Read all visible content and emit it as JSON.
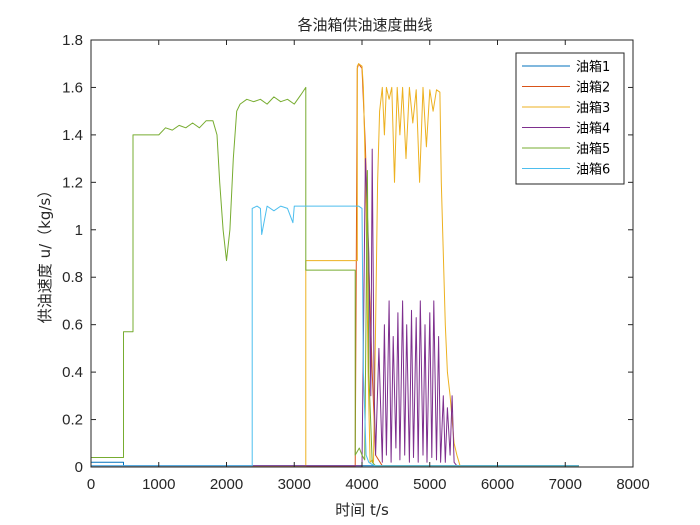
{
  "chart_data": {
    "type": "line",
    "title": "各油箱供油速度曲线",
    "xlabel": "时间 t/s",
    "ylabel": "供油速度 u/（kg/s）",
    "xlim": [
      0,
      8000
    ],
    "ylim": [
      0,
      1.8
    ],
    "x_ticks": [
      0,
      1000,
      2000,
      3000,
      4000,
      5000,
      6000,
      7000,
      8000
    ],
    "y_ticks": [
      0,
      0.2,
      0.4,
      0.6,
      0.8,
      1,
      1.2,
      1.4,
      1.6,
      1.8
    ],
    "x_tick_labels": [
      "0",
      "1000",
      "2000",
      "3000",
      "4000",
      "5000",
      "6000",
      "7000",
      "8000"
    ],
    "y_tick_labels": [
      "0",
      "0.2",
      "0.4",
      "0.6",
      "0.8",
      "1",
      "1.2",
      "1.4",
      "1.6",
      "1.8"
    ],
    "grid": false,
    "legend_position": "top-right",
    "series": [
      {
        "name": "油箱1",
        "color": "#0072BD",
        "x": [
          0,
          480,
          480,
          4000,
          7200
        ],
        "y": [
          0.02,
          0.02,
          0.005,
          0.005,
          0.005
        ]
      },
      {
        "name": "油箱2",
        "color": "#D95319",
        "x": [
          0,
          3900,
          3930,
          3950,
          4000,
          4050,
          4100,
          4150,
          4200,
          4300,
          7200
        ],
        "y": [
          0.003,
          0.003,
          1.68,
          1.7,
          1.68,
          1.35,
          0.85,
          0.4,
          0.05,
          0.005,
          0.005
        ]
      },
      {
        "name": "油箱3",
        "color": "#EDB120",
        "x": [
          0,
          3170,
          3170,
          3930,
          3930,
          3950,
          4000,
          4020,
          4060,
          4090,
          4120,
          4150,
          4170,
          4200,
          4230,
          4260,
          4300,
          4330,
          4360,
          4400,
          4440,
          4480,
          4520,
          4560,
          4600,
          4650,
          4700,
          4750,
          4800,
          4850,
          4900,
          4950,
          5000,
          5050,
          5100,
          5150,
          5170,
          5200,
          5230,
          5260,
          5300,
          5330,
          5360,
          5400,
          5450,
          7200
        ],
        "y": [
          0.003,
          0.003,
          0.87,
          0.87,
          1.69,
          1.7,
          1.69,
          1.6,
          1.1,
          0.4,
          0.02,
          0.03,
          0.02,
          0.6,
          1.2,
          1.5,
          1.6,
          1.4,
          1.6,
          1.55,
          1.6,
          1.2,
          1.6,
          1.4,
          1.6,
          1.3,
          1.6,
          1.45,
          1.59,
          1.2,
          1.6,
          1.35,
          1.59,
          1.5,
          1.59,
          1.58,
          1.2,
          0.9,
          0.6,
          0.4,
          0.3,
          0.2,
          0.1,
          0.05,
          0.003,
          0.003
        ]
      },
      {
        "name": "油箱4",
        "color": "#7E2F8E",
        "x": [
          0,
          4000,
          4050,
          4100,
          4130,
          4150,
          4180,
          4200,
          4250,
          4300,
          4330,
          4360,
          4400,
          4430,
          4460,
          4500,
          4530,
          4560,
          4600,
          4630,
          4660,
          4700,
          4730,
          4760,
          4800,
          4830,
          4860,
          4900,
          4930,
          4960,
          5000,
          5030,
          5060,
          5100,
          5130,
          5160,
          5200,
          5230,
          5260,
          5300,
          5330,
          5360,
          5400,
          7200
        ],
        "y": [
          0.005,
          0.005,
          1.3,
          0.9,
          0.3,
          1.34,
          0.3,
          0.05,
          0.5,
          0.02,
          0.6,
          0.05,
          0.7,
          0.02,
          0.55,
          0.08,
          0.65,
          0.03,
          0.7,
          0.05,
          0.6,
          0.02,
          0.66,
          0.04,
          0.63,
          0.02,
          0.7,
          0.05,
          0.6,
          0.02,
          0.65,
          0.04,
          0.7,
          0.03,
          0.55,
          0.02,
          0.3,
          0.02,
          0.25,
          0.05,
          0.3,
          0.02,
          0.005,
          0.005
        ]
      },
      {
        "name": "油箱5",
        "color": "#77AC30",
        "x": [
          0,
          480,
          480,
          620,
          620,
          1000,
          1100,
          1200,
          1300,
          1400,
          1500,
          1600,
          1700,
          1800,
          1860,
          1900,
          1950,
          2000,
          2050,
          2100,
          2150,
          2200,
          2300,
          2400,
          2500,
          2600,
          2700,
          2800,
          2900,
          3000,
          3100,
          3170,
          3170,
          3900,
          3900,
          3960,
          4000,
          4040,
          4080,
          4100,
          4150,
          4200,
          7200
        ],
        "y": [
          0.04,
          0.04,
          0.57,
          0.57,
          1.4,
          1.4,
          1.43,
          1.42,
          1.44,
          1.43,
          1.45,
          1.43,
          1.46,
          1.46,
          1.4,
          1.2,
          1.0,
          0.87,
          1.0,
          1.3,
          1.5,
          1.53,
          1.55,
          1.54,
          1.55,
          1.53,
          1.56,
          1.54,
          1.55,
          1.53,
          1.57,
          1.6,
          0.83,
          0.83,
          0.05,
          0.08,
          0.05,
          0.03,
          1.25,
          0.4,
          0.02,
          0.005,
          0.005
        ]
      },
      {
        "name": "油箱6",
        "color": "#4DBEEE",
        "x": [
          0,
          2380,
          2380,
          2450,
          2500,
          2520,
          2600,
          2700,
          2800,
          2900,
          2980,
          3000,
          3100,
          3150,
          3950,
          4000,
          4020,
          4060,
          4100,
          4150,
          4200,
          7200
        ],
        "y": [
          0.005,
          0.005,
          1.09,
          1.1,
          1.09,
          0.98,
          1.1,
          1.08,
          1.1,
          1.09,
          1.03,
          1.1,
          1.1,
          1.1,
          1.1,
          1.09,
          0.4,
          0.05,
          0.02,
          0.01,
          0.005,
          0.005
        ]
      }
    ]
  }
}
